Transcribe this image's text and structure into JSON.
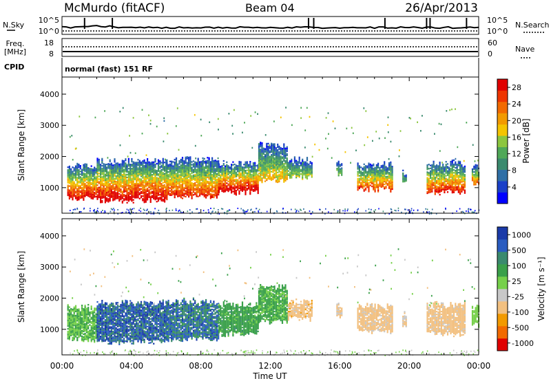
{
  "header": {
    "station": "McMurdo (fitACF)",
    "beam": "Beam 04",
    "date": "26/Apr/2013"
  },
  "noise_panel": {
    "left_label": "N.Sky",
    "left_ticks": [
      "10^5",
      "10^0"
    ],
    "right_label": "N.Search",
    "right_ticks": [
      "10^5",
      "10^0"
    ]
  },
  "freq_panel": {
    "left_label_line1": "Freq.",
    "left_label_line2": "[MHz]",
    "left_ticks": [
      "18",
      "8"
    ],
    "right_label": "Nave",
    "right_ticks": [
      "60",
      "0"
    ]
  },
  "cpid": {
    "label": "CPID",
    "text": "normal (fast) 151 RF"
  },
  "x_axis": {
    "label": "Time UT",
    "ticks": [
      "00:00",
      "04:00",
      "08:00",
      "12:00",
      "16:00",
      "20:00",
      "00:00"
    ]
  },
  "chart_data": [
    {
      "type": "heatmap",
      "title": "",
      "xlabel": "Time UT",
      "ylabel": "Slant Range [km]",
      "xlim": [
        "00:00",
        "24:00"
      ],
      "ylim": [
        180,
        4550
      ],
      "y_ticks": [
        "1000",
        "2000",
        "3000",
        "4000"
      ],
      "colorbar": {
        "label": "Power [dB]",
        "ticks": [
          "4",
          "8",
          "12",
          "16",
          "20",
          "24",
          "28"
        ],
        "range": [
          0,
          30
        ],
        "colors": [
          "#0000ff",
          "#1a40c8",
          "#2f6fa6",
          "#3a8a6e",
          "#4fa858",
          "#8cc63f",
          "#f4c400",
          "#f29a00",
          "#f26a00",
          "#ee3500",
          "#e00000"
        ]
      },
      "echo_regions": [
        {
          "t_start": 0.3,
          "t_end": 2.0,
          "r_low": 620,
          "r_high": 1700,
          "value": 24
        },
        {
          "t_start": 2.0,
          "t_end": 6.0,
          "r_low": 550,
          "r_high": 1850,
          "value": 26
        },
        {
          "t_start": 6.0,
          "t_end": 9.0,
          "r_low": 650,
          "r_high": 1900,
          "value": 22
        },
        {
          "t_start": 9.0,
          "t_end": 11.3,
          "r_low": 800,
          "r_high": 1800,
          "value": 26
        },
        {
          "t_start": 11.3,
          "t_end": 13.0,
          "r_low": 1200,
          "r_high": 2350,
          "value": 14
        },
        {
          "t_start": 13.0,
          "t_end": 14.4,
          "r_low": 1300,
          "r_high": 1900,
          "value": 10
        },
        {
          "t_start": 15.8,
          "t_end": 16.1,
          "r_low": 1400,
          "r_high": 1800,
          "value": 9
        },
        {
          "t_start": 17.0,
          "t_end": 19.0,
          "r_low": 900,
          "r_high": 1750,
          "value": 20
        },
        {
          "t_start": 19.6,
          "t_end": 19.8,
          "r_low": 1100,
          "r_high": 1500,
          "value": 8
        },
        {
          "t_start": 21.0,
          "t_end": 23.2,
          "r_low": 800,
          "r_high": 1800,
          "value": 22
        },
        {
          "t_start": 23.6,
          "t_end": 24.0,
          "r_low": 1100,
          "r_high": 1700,
          "value": 18
        }
      ]
    },
    {
      "type": "heatmap",
      "title": "",
      "xlabel": "Time UT",
      "ylabel": "Slant Range [km]",
      "xlim": [
        "00:00",
        "24:00"
      ],
      "ylim": [
        180,
        4550
      ],
      "y_ticks": [
        "1000",
        "2000",
        "3000",
        "4000"
      ],
      "colorbar": {
        "label": "Velocity [m s⁻¹]",
        "ticks": [
          "1000",
          "500",
          "100",
          "25",
          "-25",
          "-100",
          "-500",
          "-1000"
        ],
        "range": [
          -1000,
          1000
        ],
        "colors": [
          "#e00000",
          "#f26a00",
          "#f29a00",
          "#f2c080",
          "#c8c8c8",
          "#76d04a",
          "#3aa04a",
          "#3a8a6e",
          "#2a5cc0",
          "#1a3aa8"
        ]
      },
      "echo_regions": [
        {
          "t_start": 0.3,
          "t_end": 2.0,
          "r_low": 620,
          "r_high": 1700,
          "value": 200
        },
        {
          "t_start": 2.0,
          "t_end": 6.0,
          "r_low": 550,
          "r_high": 1850,
          "value": 700
        },
        {
          "t_start": 6.0,
          "t_end": 9.0,
          "r_low": 650,
          "r_high": 1900,
          "value": 600
        },
        {
          "t_start": 9.0,
          "t_end": 11.3,
          "r_low": 800,
          "r_high": 1800,
          "value": 300
        },
        {
          "t_start": 11.3,
          "t_end": 13.0,
          "r_low": 1200,
          "r_high": 2350,
          "value": 250
        },
        {
          "t_start": 13.0,
          "t_end": 14.4,
          "r_low": 1300,
          "r_high": 1900,
          "value": -300
        },
        {
          "t_start": 15.8,
          "t_end": 16.1,
          "r_low": 1400,
          "r_high": 1800,
          "value": -250
        },
        {
          "t_start": 17.0,
          "t_end": 19.0,
          "r_low": 900,
          "r_high": 1750,
          "value": -280
        },
        {
          "t_start": 19.6,
          "t_end": 19.8,
          "r_low": 1100,
          "r_high": 1500,
          "value": -200
        },
        {
          "t_start": 21.0,
          "t_end": 23.2,
          "r_low": 800,
          "r_high": 1800,
          "value": -280
        },
        {
          "t_start": 23.6,
          "t_end": 24.0,
          "r_low": 1100,
          "r_high": 1700,
          "value": 50
        }
      ]
    }
  ]
}
